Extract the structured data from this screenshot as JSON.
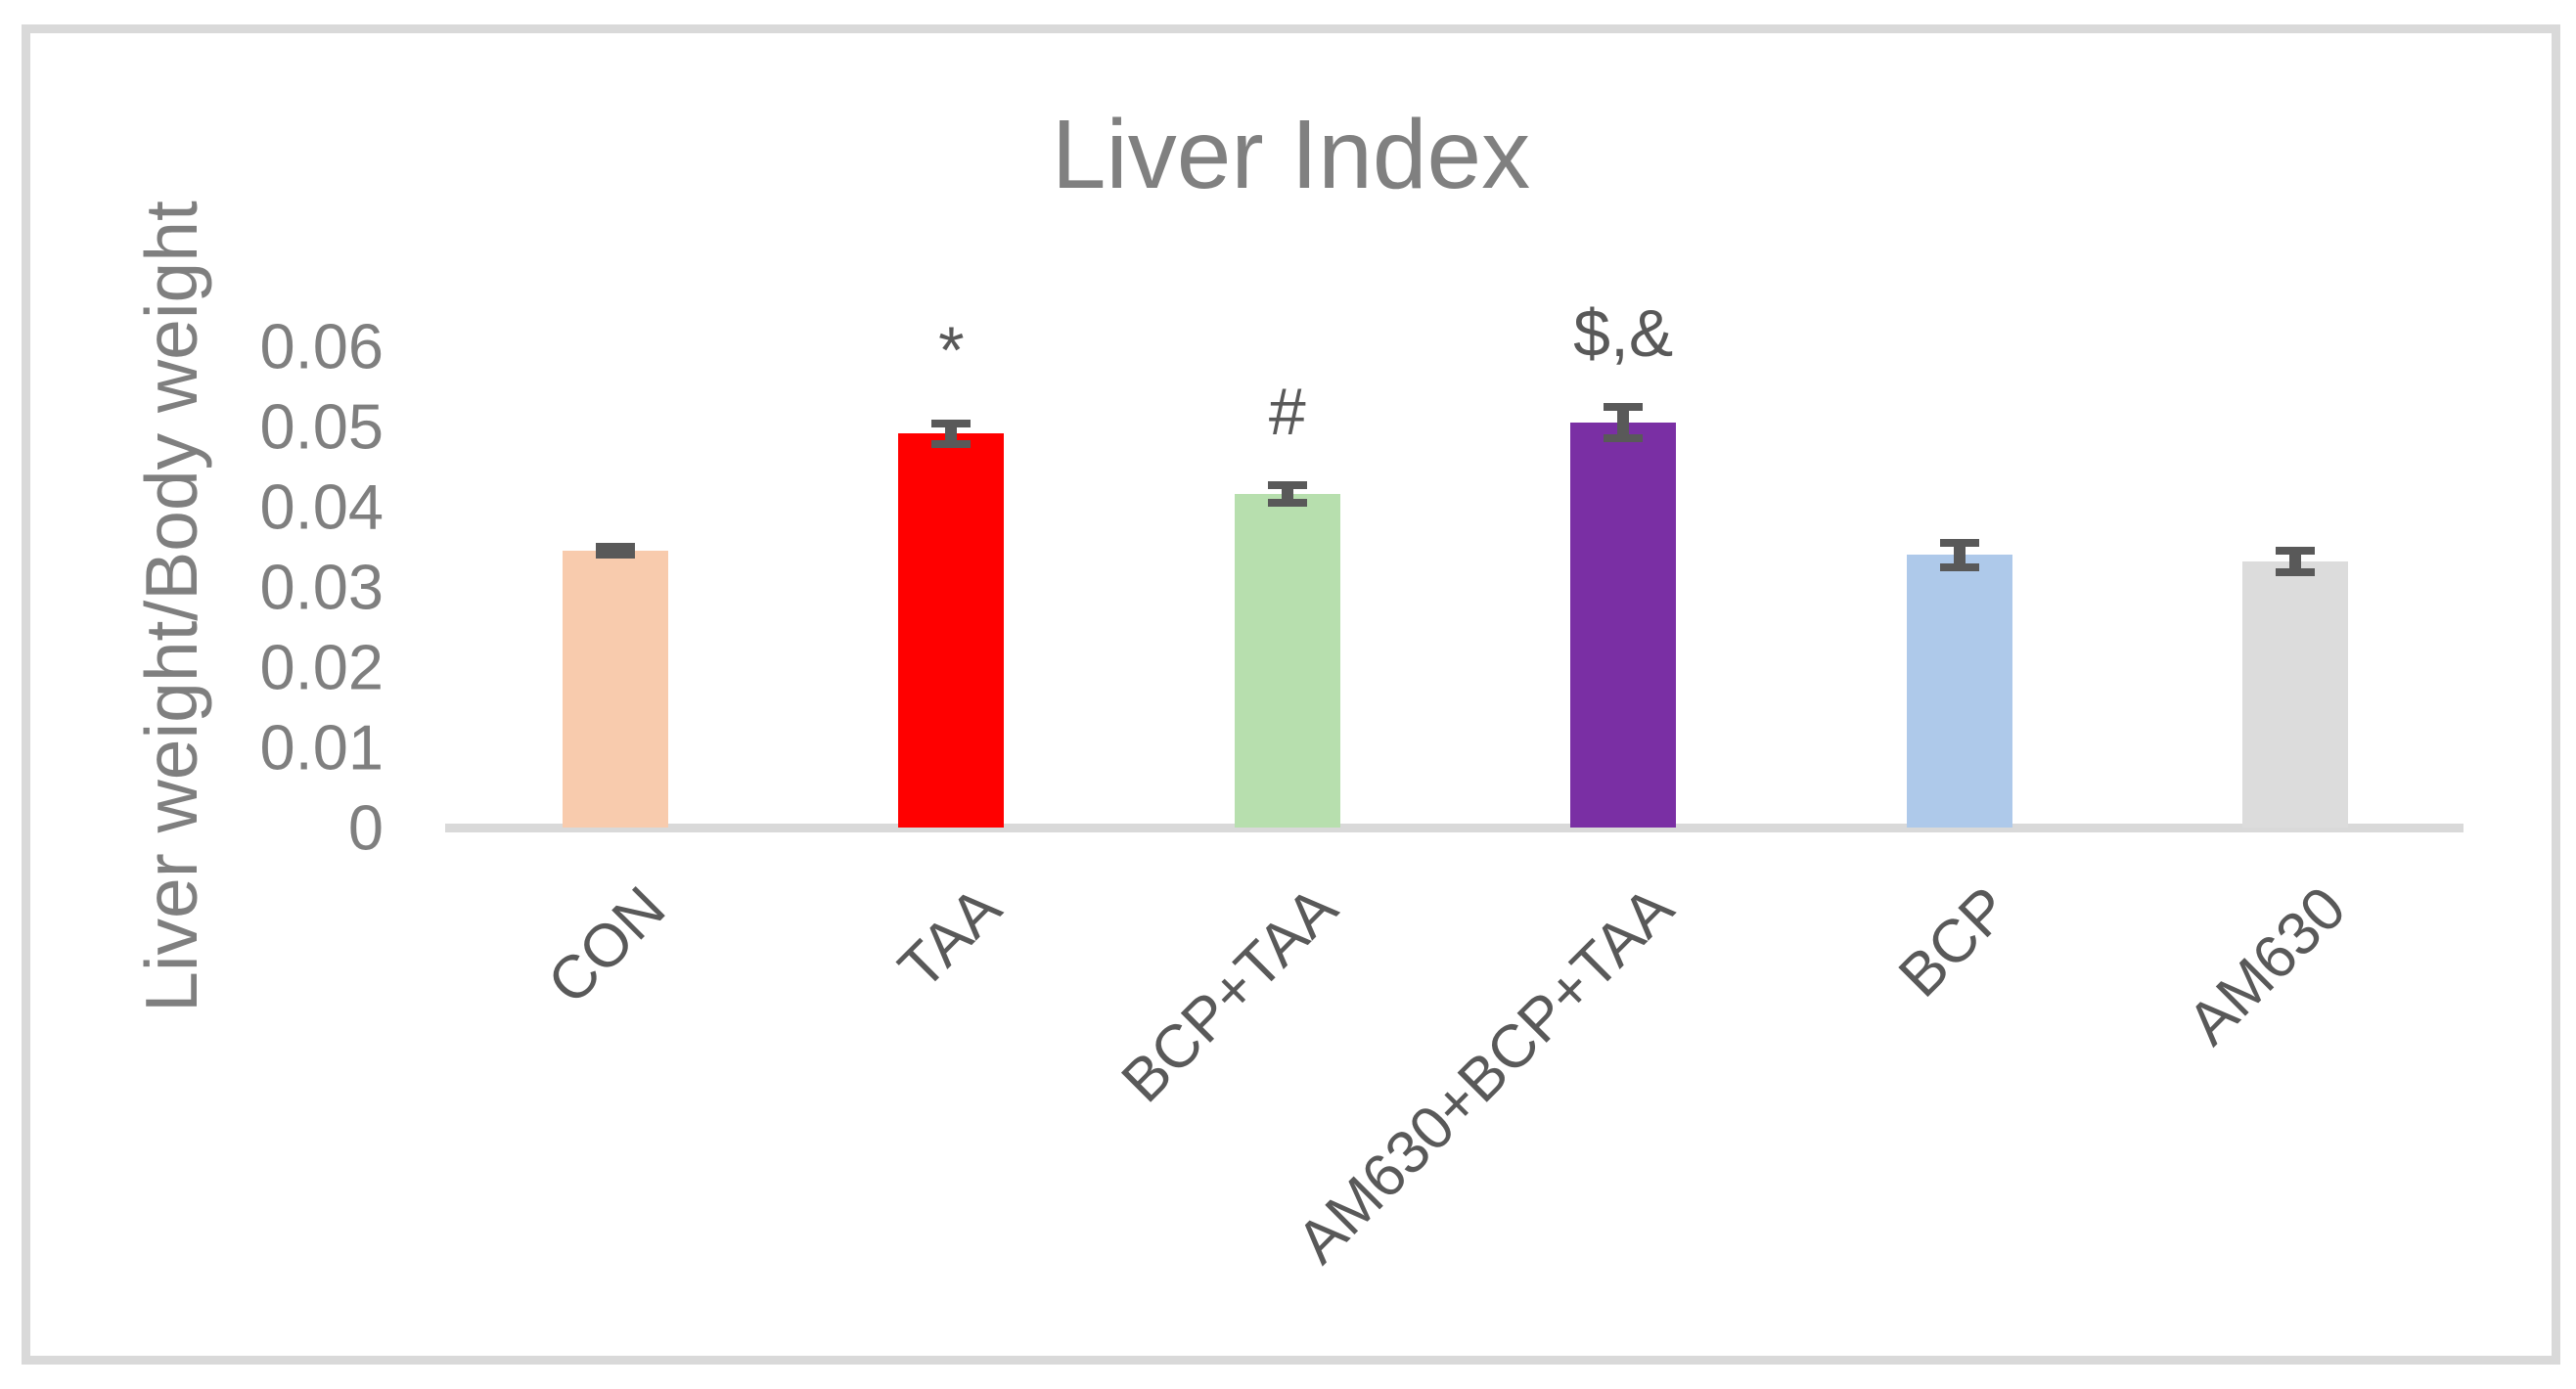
{
  "chart_data": {
    "type": "bar",
    "title": "Liver Index",
    "xlabel": "",
    "ylabel": "Liver weight/Body weight",
    "categories": [
      "CON",
      "TAA",
      "BCP+TAA",
      "AM630+BCP+TAA",
      "BCP",
      "AM630"
    ],
    "values": [
      0.034,
      0.0486,
      0.0411,
      0.05,
      0.0335,
      0.0327
    ],
    "error_bars": [
      0.0005,
      0.0013,
      0.0011,
      0.0019,
      0.0015,
      0.0013
    ],
    "annotations": [
      "",
      "*",
      "#",
      "$,&",
      "",
      ""
    ],
    "bar_colors": [
      "#F8CBAD",
      "#FF0000",
      "#B7DFAE",
      "#7A2FA4",
      "#AEC9EA",
      "#DCDCDC"
    ],
    "y_ticks": [
      {
        "label": "0",
        "value": 0
      },
      {
        "label": "0.01",
        "value": 0.01
      },
      {
        "label": "0.02",
        "value": 0.02
      },
      {
        "label": "0.03",
        "value": 0.03
      },
      {
        "label": "0.04",
        "value": 0.04
      },
      {
        "label": "0.05",
        "value": 0.05
      },
      {
        "label": "0.06",
        "value": 0.06
      }
    ],
    "ylim": [
      0,
      0.06
    ],
    "grid": false,
    "legend": "none",
    "colors": {
      "title_text": "#808080",
      "axis_tick_text": "#7f7f7f",
      "category_text": "#595959",
      "annotation_text": "#595959",
      "error_bar": "#595959",
      "axis_line": "#d9d9d9",
      "frame_border": "#d9d9d9",
      "background": "#ffffff"
    }
  }
}
